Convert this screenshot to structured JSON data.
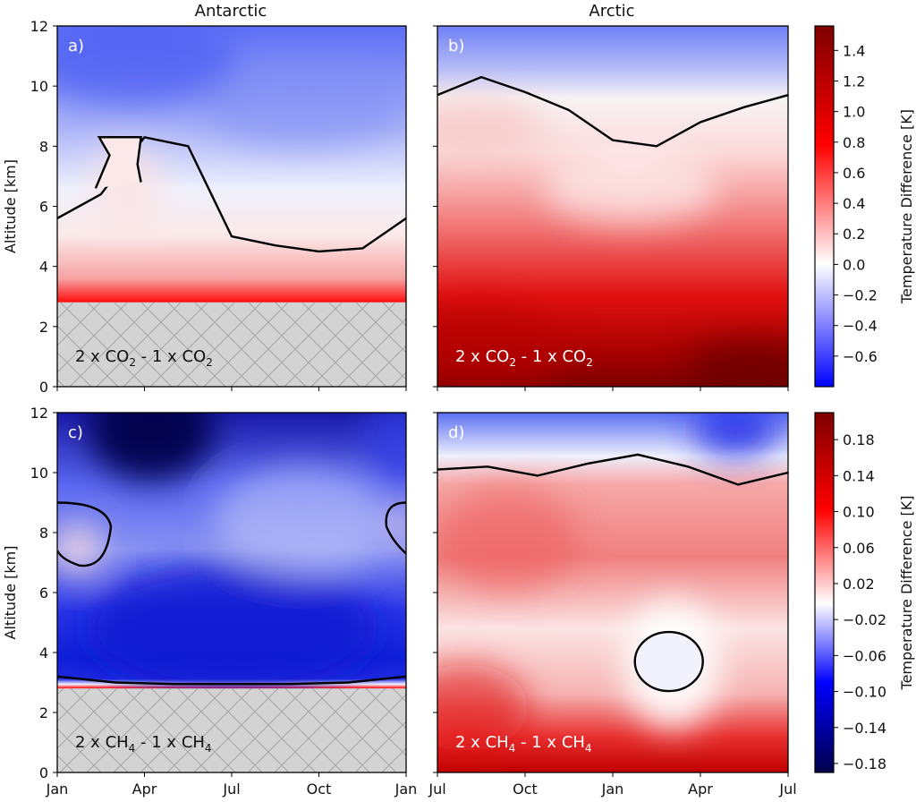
{
  "columns": {
    "left_title": "Antarctic",
    "right_title": "Arctic"
  },
  "colorbars": [
    {
      "label": "Temperature Difference [K]",
      "ticks": [
        1.4,
        1.2,
        1.0,
        0.8,
        0.6,
        0.4,
        0.2,
        0.0,
        -0.2,
        -0.4,
        -0.6
      ],
      "tick_labels": [
        "1.4",
        "1.2",
        "1.0",
        "0.8",
        "0.6",
        "0.4",
        "0.2",
        "0.0",
        "−0.2",
        "−0.4",
        "−0.6"
      ],
      "range": [
        -0.8,
        1.56
      ]
    },
    {
      "label": "Temperature Difference [K]",
      "ticks": [
        0.18,
        0.14,
        0.1,
        0.06,
        0.02,
        -0.02,
        -0.06,
        -0.1,
        -0.14,
        -0.18
      ],
      "tick_labels": [
        "0.18",
        "0.14",
        "0.10",
        "0.06",
        "0.02",
        "−0.02",
        "−0.06",
        "−0.10",
        "−0.14",
        "−0.18"
      ],
      "range": [
        -0.19,
        0.21
      ]
    }
  ],
  "colors": {
    "cold_max": "#00004a",
    "cold": "#0000ff",
    "neutral": "#ffffff",
    "warm": "#ff0000",
    "warm_max": "#7f0000",
    "ground_fill": "#d3d3d3",
    "ground_hatch": "#a6a6a6"
  },
  "chart_data": [
    {
      "type": "heatmap",
      "panel": "a)",
      "annotation": "2 x CO2 - 1 x CO2",
      "ylabel": "Altitude [km]",
      "xlabel": "",
      "x_ticks": [
        "Jan",
        "Apr",
        "Jul",
        "Oct",
        "Jan"
      ],
      "y_ticks": [
        0,
        2,
        4,
        6,
        8,
        10,
        12
      ],
      "ylim": [
        0,
        12
      ],
      "zero_contour_km": [
        5.6,
        6.4,
        8.3,
        8.0,
        5.0,
        4.7,
        4.5,
        4.6,
        5.6
      ],
      "ground_hatch_below_km": 2.8
    },
    {
      "type": "heatmap",
      "panel": "b)",
      "annotation": "2 x CO2 - 1 x CO2",
      "ylabel": "",
      "xlabel": "",
      "x_ticks": [
        "Jul",
        "Oct",
        "Jan",
        "Apr",
        "Jul"
      ],
      "y_ticks": [
        0,
        2,
        4,
        6,
        8,
        10,
        12
      ],
      "ylim": [
        0,
        12
      ],
      "zero_contour_km": [
        9.7,
        10.3,
        9.8,
        9.2,
        8.2,
        8.0,
        8.8,
        9.3,
        9.7
      ]
    },
    {
      "type": "heatmap",
      "panel": "c)",
      "annotation": "2 x CH4 - 1 x CH4",
      "ylabel": "Altitude [km]",
      "xlabel": "",
      "x_ticks": [
        "Jan",
        "Apr",
        "Jul",
        "Oct",
        "Jan"
      ],
      "y_ticks": [
        0,
        2,
        4,
        6,
        8,
        10,
        12
      ],
      "ylim": [
        0,
        12
      ],
      "zero_contour_km": [
        3.2,
        3.0,
        2.95,
        2.95,
        2.95,
        3.0,
        3.2
      ],
      "ground_hatch_below_km": 2.8
    },
    {
      "type": "heatmap",
      "panel": "d)",
      "annotation": "2 x CH4 - 1 x CH4",
      "ylabel": "",
      "xlabel": "",
      "x_ticks": [
        "Jul",
        "Oct",
        "Jan",
        "Apr",
        "Jul"
      ],
      "y_ticks": [
        0,
        2,
        4,
        6,
        8,
        10,
        12
      ],
      "ylim": [
        0,
        12
      ],
      "zero_contour_km": [
        10.1,
        10.2,
        9.9,
        10.3,
        10.6,
        10.2,
        9.6,
        10.0
      ]
    }
  ]
}
